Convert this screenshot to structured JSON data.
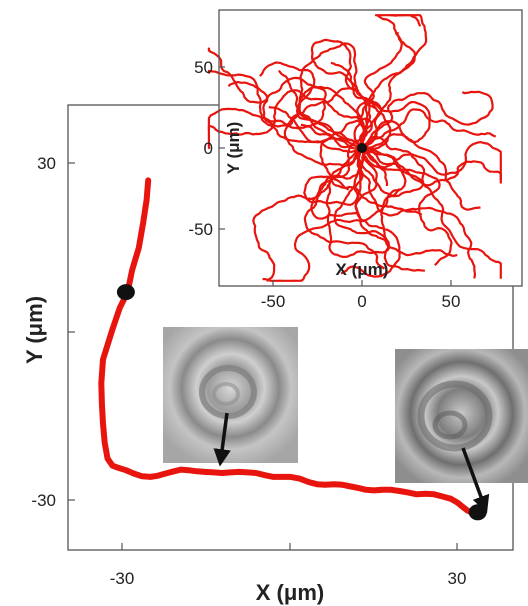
{
  "chart_data": [
    {
      "type": "line",
      "xlabel": "X (μm)",
      "ylabel": "Y (μm)",
      "x_ticks": [
        -30,
        30
      ],
      "y_ticks": [
        30,
        -30
      ],
      "xlim": [
        -44,
        36
      ],
      "ylim": [
        -37,
        42
      ],
      "grid": false,
      "colors": {
        "track": "#e8150f",
        "marker": "#111111"
      },
      "series": [
        {
          "x": [
            -25.3,
            -25.6,
            -26.2,
            -27,
            -28.2,
            -29,
            -30.4,
            -31.7,
            -33.4,
            -33.7,
            -33.6,
            -33.4,
            -33.1,
            -32.6,
            -31.7,
            -30.6,
            -29.3,
            -27.9,
            -26.4,
            -24.9,
            -23.6,
            -22.2,
            -20.7,
            -19.4,
            -18.1,
            -16.6,
            -15.2,
            -13.6,
            -12.1,
            -10.6,
            -9,
            -7.5,
            -6,
            -4.4,
            -2.9,
            -1.3,
            0.2,
            1.8,
            3.4,
            4.9,
            6.4,
            8,
            9.5,
            11,
            12.4,
            13.7,
            15.1,
            16.6,
            18.2,
            19.7,
            21.3,
            22.8,
            24.4,
            25.9,
            27.5,
            28.9,
            30.1,
            31.1,
            31.9,
            32.6,
            33.1
          ],
          "y": [
            27,
            23.5,
            19.5,
            15,
            11,
            7.1,
            4.3,
            0.5,
            -4.9,
            -9.1,
            -12.8,
            -16.3,
            -19.7,
            -22.5,
            -23.8,
            -24.2,
            -24.6,
            -25.2,
            -25.7,
            -25.8,
            -25.6,
            -25.2,
            -24.8,
            -24.5,
            -24.6,
            -24.8,
            -24.9,
            -25,
            -25.1,
            -25,
            -24.9,
            -25,
            -25.1,
            -25.5,
            -25.8,
            -25.8,
            -25.8,
            -26.1,
            -26.7,
            -27.1,
            -27.2,
            -27.1,
            -27.2,
            -27.5,
            -27.8,
            -28.1,
            -28.2,
            -28.1,
            -28.1,
            -28.3,
            -28.6,
            -28.9,
            -28.8,
            -28.9,
            -29.3,
            -29.7,
            -30.4,
            -31.2,
            -31.8,
            -32.1,
            -32.1
          ]
        }
      ],
      "markers": [
        {
          "x": -29.3,
          "y": 7.1
        },
        {
          "x": 33.7,
          "y": -32.1
        }
      ]
    },
    {
      "type": "line",
      "xlabel": "X (μm)",
      "ylabel": "Y (μm)",
      "x_ticks": [
        -50,
        0,
        50
      ],
      "y_ticks": [
        50,
        0,
        -50
      ],
      "xlim": [
        -90,
        80
      ],
      "ylim": [
        -85,
        85
      ],
      "grid": false,
      "colors": {
        "track": "#e8150f",
        "marker": "#111111"
      },
      "marker": {
        "x": 0,
        "y": 0
      }
    }
  ]
}
